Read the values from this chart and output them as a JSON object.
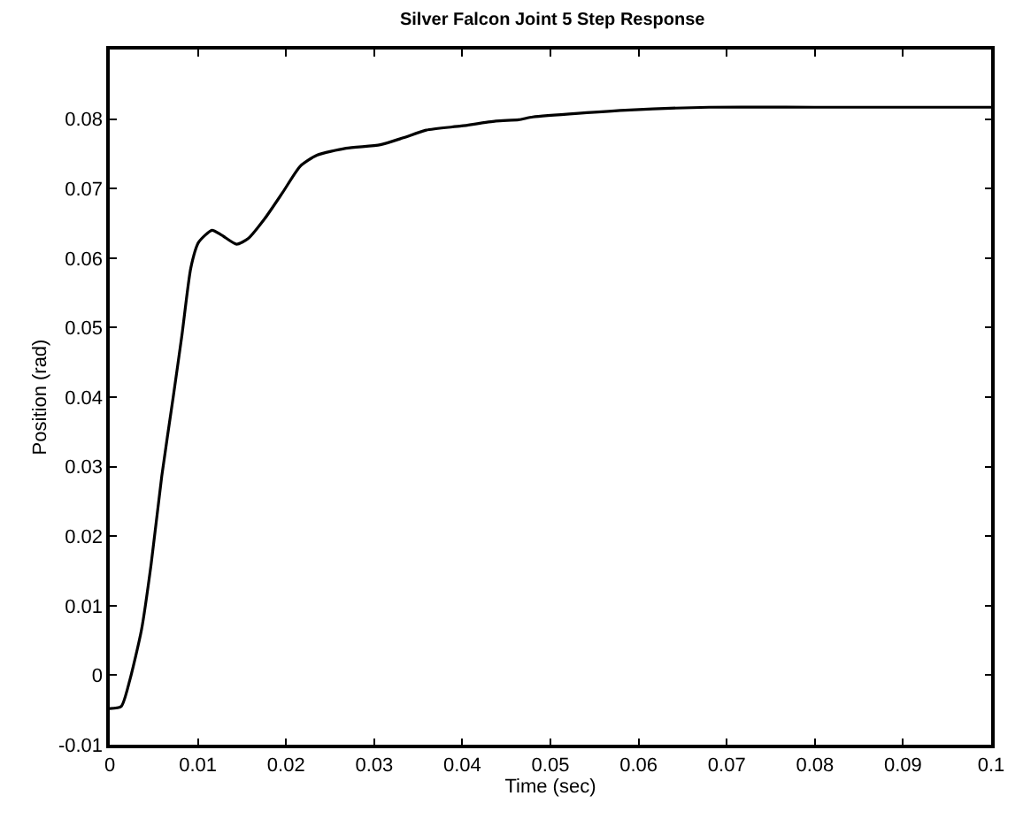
{
  "chart_data": {
    "type": "line",
    "title": "Silver Falcon Joint 5 Step Response",
    "xlabel": "Time (sec)",
    "ylabel": "Position (rad)",
    "x": [
      0,
      0.0013,
      0.0023,
      0.0036,
      0.0047,
      0.0059,
      0.0072,
      0.0082,
      0.0092,
      0.0101,
      0.0116,
      0.0127,
      0.0144,
      0.0157,
      0.0176,
      0.0196,
      0.0216,
      0.0235,
      0.0268,
      0.0307,
      0.0333,
      0.0359,
      0.0399,
      0.0438,
      0.0464,
      0.048,
      0.059,
      0.068,
      0.08,
      0.1
    ],
    "series": [
      {
        "color": "#000000",
        "values": [
          -0.0048,
          -0.0045,
          -0.0006,
          0.0065,
          0.016,
          0.0286,
          0.04,
          0.049,
          0.0586,
          0.0623,
          0.064,
          0.0633,
          0.062,
          0.0628,
          0.0657,
          0.0694,
          0.0732,
          0.0748,
          0.0758,
          0.0763,
          0.0773,
          0.0784,
          0.079,
          0.0797,
          0.0799,
          0.0803,
          0.0813,
          0.0817,
          0.0817,
          0.0817
        ]
      }
    ],
    "xlim": [
      0,
      0.1
    ],
    "xticks": [
      0,
      0.01,
      0.02,
      0.03,
      0.04,
      0.05,
      0.06,
      0.07,
      0.08,
      0.09,
      0.1
    ],
    "ylim": [
      -0.01,
      0.09
    ],
    "yticks": [
      -0.01,
      0,
      0.01,
      0.02,
      0.03,
      0.04,
      0.05,
      0.06,
      0.07,
      0.08
    ],
    "grid": false,
    "marker": "none",
    "line_style": "solid"
  }
}
